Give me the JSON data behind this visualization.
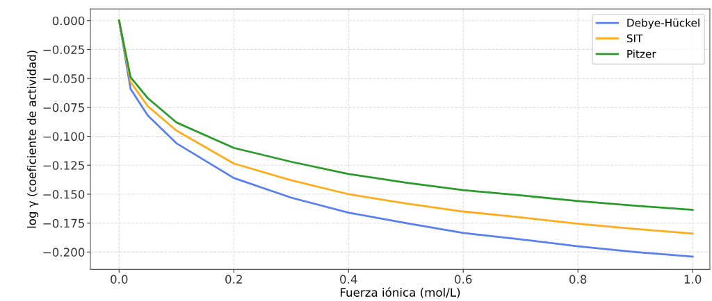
{
  "chart_data": {
    "type": "line",
    "xlabel": "Fuerza iónica (mol/L)",
    "ylabel": "log γ (coeficiente de actividad)",
    "x": [
      0,
      0.02,
      0.05,
      0.1,
      0.2,
      0.3,
      0.4,
      0.5,
      0.6,
      0.7,
      0.8,
      0.9,
      1.0
    ],
    "series": [
      {
        "name": "Debye-Hückel",
        "color": "#5a7ff0",
        "values": [
          0,
          -0.059,
          -0.082,
          -0.106,
          -0.136,
          -0.153,
          -0.166,
          -0.175,
          -0.1835,
          -0.189,
          -0.195,
          -0.2,
          -0.204
        ]
      },
      {
        "name": "SIT",
        "color": "#ffac1c",
        "values": [
          0,
          -0.053,
          -0.074,
          -0.095,
          -0.1235,
          -0.138,
          -0.15,
          -0.158,
          -0.165,
          -0.17,
          -0.1755,
          -0.18,
          -0.184
        ]
      },
      {
        "name": "Pitzer",
        "color": "#2a9a2a",
        "values": [
          0,
          -0.049,
          -0.067,
          -0.088,
          -0.11,
          -0.122,
          -0.1325,
          -0.14,
          -0.1465,
          -0.151,
          -0.156,
          -0.16,
          -0.1635
        ]
      }
    ],
    "xlim": [
      -0.05,
      1.03
    ],
    "ylim": [
      -0.215,
      0.01
    ],
    "xticks": [
      {
        "value": 0,
        "label": "0.0"
      },
      {
        "value": 0.2,
        "label": "0.2"
      },
      {
        "value": 0.4,
        "label": "0.4"
      },
      {
        "value": 0.6,
        "label": "0.6"
      },
      {
        "value": 0.8,
        "label": "0.8"
      },
      {
        "value": 1.0,
        "label": "1.0"
      }
    ],
    "yticks": [
      {
        "value": 0,
        "label": "0.000"
      },
      {
        "value": -0.025,
        "label": "−0.025"
      },
      {
        "value": -0.05,
        "label": "−0.050"
      },
      {
        "value": -0.075,
        "label": "−0.075"
      },
      {
        "value": -0.1,
        "label": "−0.100"
      },
      {
        "value": -0.125,
        "label": "−0.125"
      },
      {
        "value": -0.15,
        "label": "−0.150"
      },
      {
        "value": -0.175,
        "label": "−0.175"
      },
      {
        "value": -0.2,
        "label": "−0.200"
      }
    ],
    "grid": true,
    "legend": "top right",
    "line_style": "solid",
    "marker": "none"
  }
}
